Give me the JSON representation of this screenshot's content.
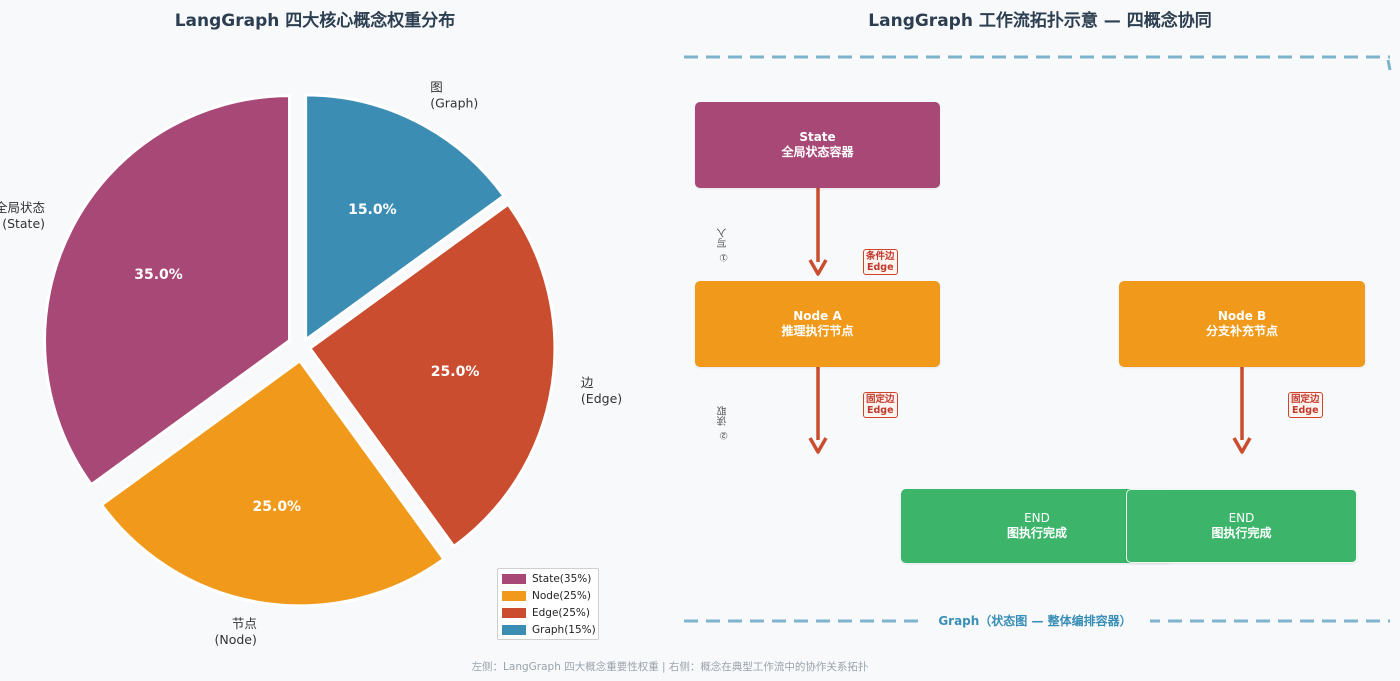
{
  "chart_data": {
    "type": "pie",
    "title": "LangGraph 四大核心概念权重分布",
    "slices": [
      {
        "label": "图\n(Graph)",
        "value": 15.0,
        "pct": "15.0%",
        "color": "#3b8db3",
        "legend": "Graph(15%)"
      },
      {
        "label": "边\n(Edge)",
        "value": 25.0,
        "pct": "25.0%",
        "color": "#c94d2e",
        "legend": "Edge(25%)"
      },
      {
        "label": "节点\n(Node)",
        "value": 25.0,
        "pct": "25.0%",
        "color": "#f0991a",
        "legend": "Node(25%)"
      },
      {
        "label": "全局状态\n(State)",
        "value": 35.0,
        "pct": "35.0%",
        "color": "#a84877",
        "legend": "State(35%)"
      }
    ],
    "legend_order": [
      "State(35%)",
      "Node(25%)",
      "Edge(25%)",
      "Graph(15%)"
    ],
    "legend_placement": "bottom-right"
  },
  "diagram": {
    "title": "LangGraph 工作流拓扑示意 — 四概念协同",
    "state_box": {
      "line1": "State",
      "line2": "全局状态容器",
      "color": "#a84877"
    },
    "node_a": {
      "line1": "Node A",
      "line2": "推理执行节点",
      "color": "#f0991a"
    },
    "node_b": {
      "line1": "Node B",
      "line2": "分支补充节点",
      "color": "#f0991a"
    },
    "end_1": {
      "line1": "END",
      "line2": "图执行完成",
      "color": "#3cb56a"
    },
    "end_2": {
      "line1": "END",
      "line2": "图执行完成",
      "color": "#3cb56a"
    },
    "edge_tag_1": {
      "line1": "条件边",
      "line2": "Edge"
    },
    "edge_tag_2": {
      "line1": "固定边",
      "line2": "Edge"
    },
    "edge_tag_3": {
      "line1": "固定边",
      "line2": "Edge"
    },
    "note_1": "① 写入",
    "note_2": "② 读取",
    "graph_label": "Graph（状态图 — 整体编排容器）",
    "arrow_color": "#c94d2e",
    "border_color": "#7fb3cc"
  },
  "footer": "左侧：LangGraph 四大概念重要性权重  |  右侧：概念在典型工作流中的协作关系拓扑"
}
